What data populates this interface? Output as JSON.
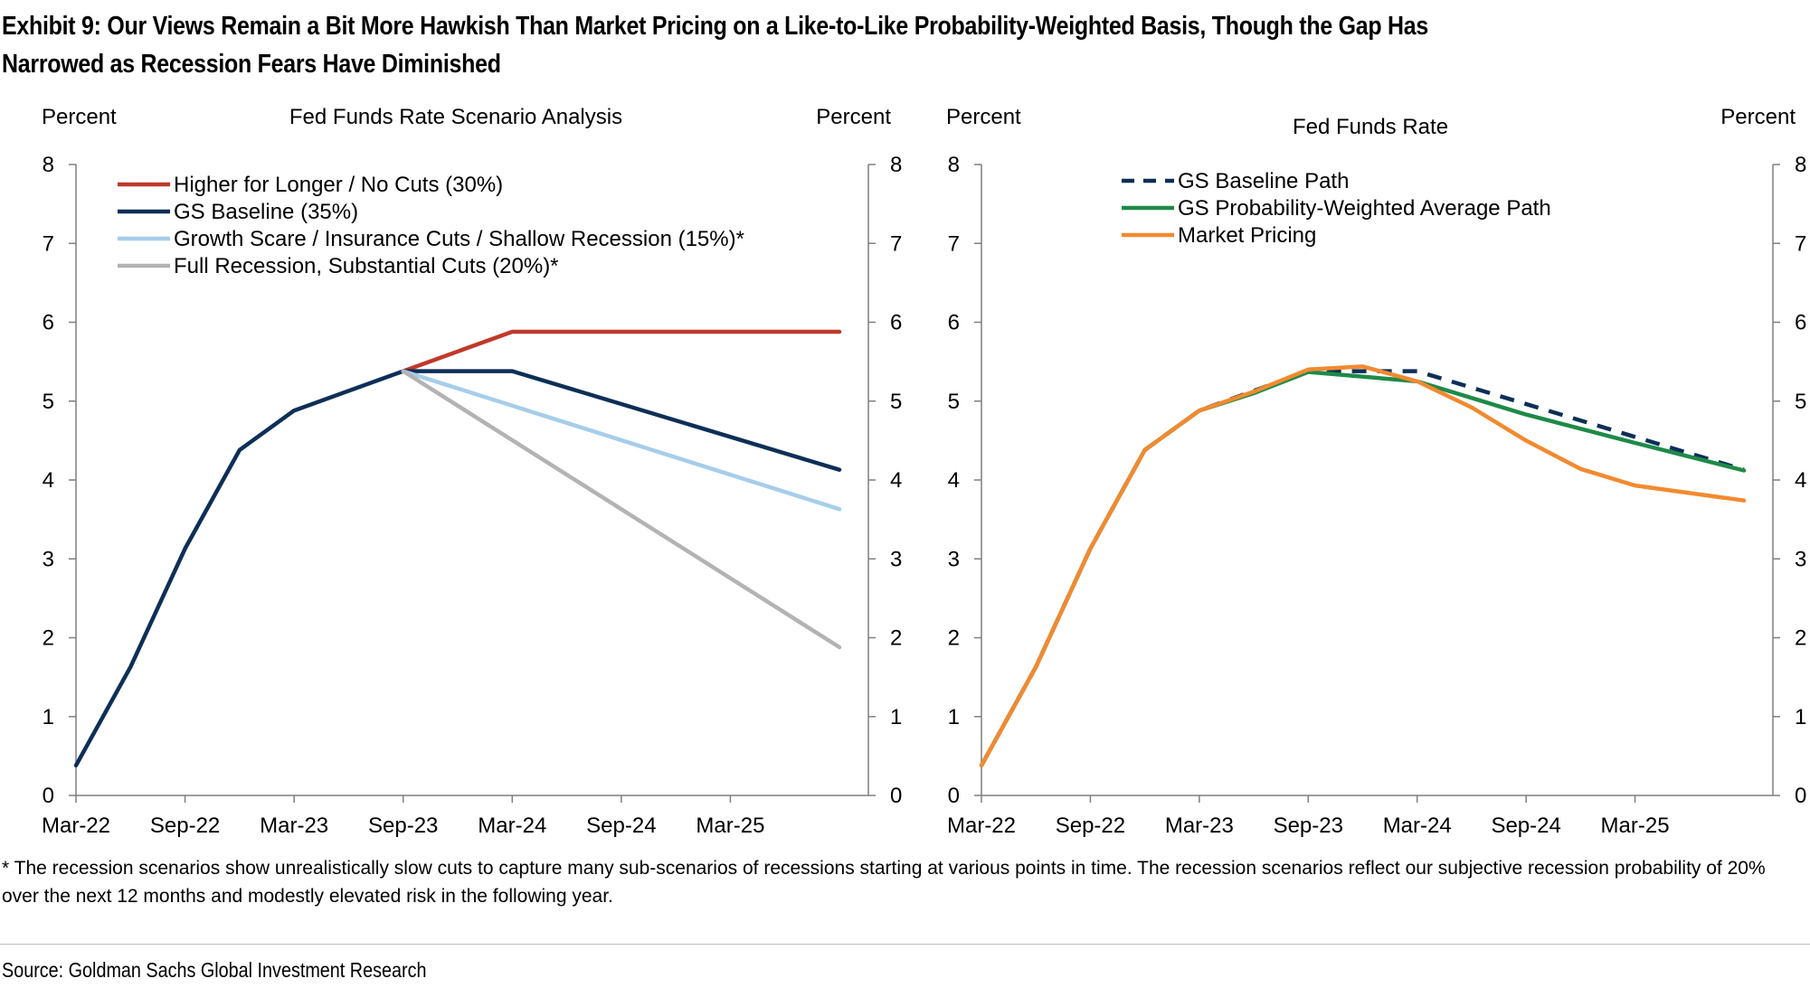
{
  "header": {
    "title_line1": "Exhibit 9: Our Views Remain a Bit More Hawkish Than Market Pricing on a Like-to-Like Probability-Weighted Basis, Though the Gap Has",
    "title_line2": "Narrowed as Recession Fears Have Diminished"
  },
  "footnote": "* The recession scenarios show unrealistically slow cuts to capture many sub-scenarios of recessions starting at various points in time.  The recession scenarios reflect our subjective recession probability of 20% over the next 12 months and modestly elevated risk in the following year.",
  "source": "Source: Goldman Sachs Global Investment Research",
  "chart_data": [
    {
      "type": "line",
      "title": "Fed Funds Rate Scenario Analysis",
      "ylabel_left": "Percent",
      "ylabel_right": "Percent",
      "ylim": [
        0,
        8
      ],
      "yticks": [
        0,
        1,
        2,
        3,
        4,
        5,
        6,
        7,
        8
      ],
      "xlim": [
        "2022-03",
        "2025-09"
      ],
      "xticks": [
        "Mar-22",
        "Sep-22",
        "Mar-23",
        "Sep-23",
        "Mar-24",
        "Sep-24",
        "Mar-25"
      ],
      "legend_position": "top-left",
      "series": [
        {
          "name": "Higher for Longer / No Cuts (30%)",
          "color": "#c0392b",
          "style": "solid",
          "x": [
            "2023-09",
            "2024-03",
            "2025-09"
          ],
          "y": [
            5.38,
            5.88,
            5.88
          ]
        },
        {
          "name": "GS Baseline (35%)",
          "color": "#0d2f57",
          "style": "solid",
          "x": [
            "2022-03",
            "2022-06",
            "2022-09",
            "2022-12",
            "2023-03",
            "2023-09",
            "2024-03",
            "2025-09"
          ],
          "y": [
            0.38,
            1.63,
            3.13,
            4.38,
            4.88,
            5.38,
            5.38,
            4.13
          ]
        },
        {
          "name": "Growth Scare / Insurance Cuts / Shallow Recession (15%)*",
          "color": "#a6cdea",
          "style": "solid",
          "x": [
            "2023-09",
            "2025-09"
          ],
          "y": [
            5.38,
            3.63
          ]
        },
        {
          "name": "Full Recession, Substantial Cuts (20%)*",
          "color": "#b3b3b3",
          "style": "solid",
          "x": [
            "2023-09",
            "2025-09"
          ],
          "y": [
            5.38,
            1.88
          ]
        }
      ]
    },
    {
      "type": "line",
      "title": "Fed Funds Rate",
      "ylabel_left": "Percent",
      "ylabel_right": "Percent",
      "ylim": [
        0,
        8
      ],
      "yticks": [
        0,
        1,
        2,
        3,
        4,
        5,
        6,
        7,
        8
      ],
      "xlim": [
        "2022-03",
        "2025-09"
      ],
      "xticks": [
        "Mar-22",
        "Sep-22",
        "Mar-23",
        "Sep-23",
        "Mar-24",
        "Sep-24",
        "Mar-25"
      ],
      "legend_position": "top-left",
      "series": [
        {
          "name": "GS Baseline Path",
          "color": "#0d2f57",
          "style": "dashed",
          "x": [
            "2022-03",
            "2022-06",
            "2022-09",
            "2022-12",
            "2023-03",
            "2023-09",
            "2024-03",
            "2025-09"
          ],
          "y": [
            0.38,
            1.63,
            3.13,
            4.38,
            4.88,
            5.38,
            5.38,
            4.13
          ]
        },
        {
          "name": "GS Probability-Weighted Average Path",
          "color": "#1e8a48",
          "style": "solid",
          "x": [
            "2022-03",
            "2022-06",
            "2022-09",
            "2022-12",
            "2023-03",
            "2023-06",
            "2023-09",
            "2024-03",
            "2024-09",
            "2025-03",
            "2025-09"
          ],
          "y": [
            0.38,
            1.63,
            3.13,
            4.38,
            4.88,
            5.1,
            5.37,
            5.25,
            4.83,
            4.47,
            4.12
          ]
        },
        {
          "name": "Market Pricing",
          "color": "#f28a30",
          "style": "solid",
          "x": [
            "2022-03",
            "2022-06",
            "2022-09",
            "2022-12",
            "2023-03",
            "2023-06",
            "2023-09",
            "2023-12",
            "2024-03",
            "2024-06",
            "2024-09",
            "2024-12",
            "2025-03",
            "2025-09"
          ],
          "y": [
            0.38,
            1.63,
            3.13,
            4.38,
            4.88,
            5.12,
            5.4,
            5.44,
            5.25,
            4.92,
            4.5,
            4.14,
            3.93,
            3.74
          ]
        }
      ]
    }
  ]
}
